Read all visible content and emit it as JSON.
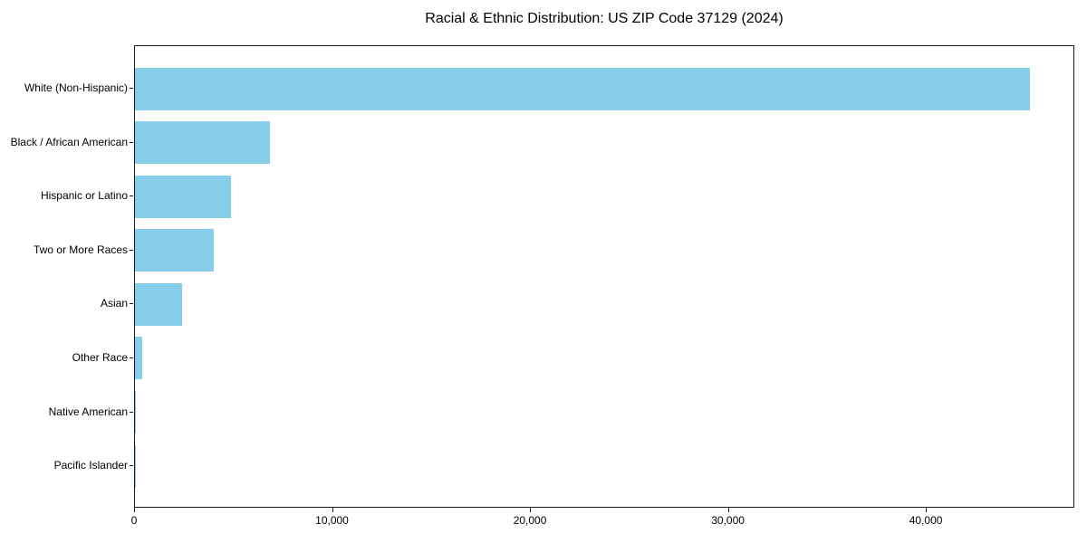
{
  "chart_data": {
    "type": "bar",
    "orientation": "horizontal",
    "title": "Racial & Ethnic Distribution: US ZIP Code 37129 (2024)",
    "categories": [
      "White (Non-Hispanic)",
      "Black / African American",
      "Hispanic or Latino",
      "Two or More Races",
      "Asian",
      "Other Race",
      "Native American",
      "Pacific Islander"
    ],
    "values": [
      45200,
      6800,
      4870,
      3980,
      2370,
      350,
      40,
      15
    ],
    "xlabel": "",
    "ylabel": "",
    "xlim": [
      0,
      47500
    ],
    "x_ticks": [
      0,
      10000,
      20000,
      30000,
      40000
    ],
    "x_tick_labels": [
      "0",
      "10,000",
      "20,000",
      "30,000",
      "40,000"
    ],
    "bar_color": "#87CEEB",
    "spine_color": "#1a1a1a",
    "grid": false,
    "legend": false
  }
}
